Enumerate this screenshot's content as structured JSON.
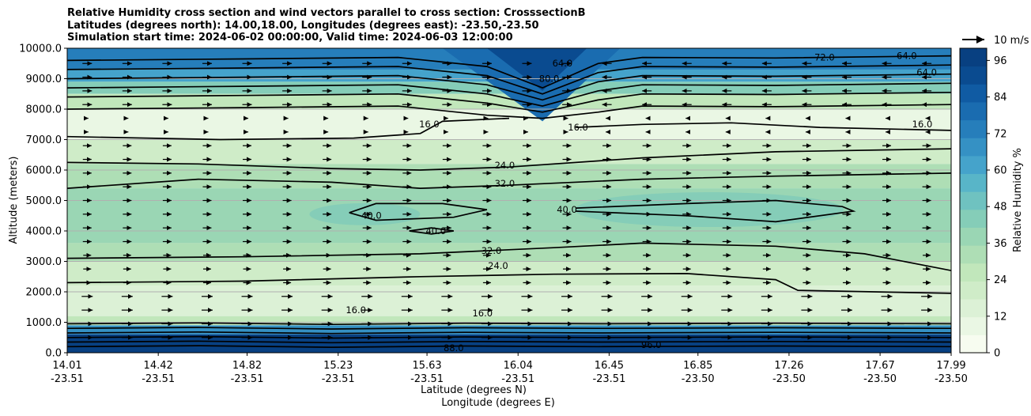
{
  "chart_data": {
    "type": "heatmap",
    "title_lines": [
      "Relative Humidity cross section and wind vectors parallel to cross section: CrosssectionB",
      "Latitudes (degrees north): 14.00,18.00, Longitudes (degrees east): -23.50,-23.50",
      "Simulation start time: 2024-06-02 00:00:00, Valid time: 2024-06-03 12:00:00"
    ],
    "ylabel": "Altitude (meters)",
    "xlabel_lat": "Latitude (degrees N)",
    "xlabel_lon": "Longitude (degrees E)",
    "colorbar_label": "Relative Humidity %",
    "ylim": [
      0,
      10000
    ],
    "y_ticks": [
      "0.0",
      "1000.0",
      "2000.0",
      "3000.0",
      "4000.0",
      "5000.0",
      "6000.0",
      "7000.0",
      "8000.0",
      "9000.0",
      "10000.0"
    ],
    "x_tick_lat": [
      "14.01",
      "14.42",
      "14.82",
      "15.23",
      "15.63",
      "16.04",
      "16.45",
      "16.85",
      "17.26",
      "17.67",
      "17.99"
    ],
    "x_tick_lon": [
      "-23.51",
      "-23.51",
      "-23.51",
      "-23.51",
      "-23.51",
      "-23.51",
      "-23.51",
      "-23.50",
      "-23.50",
      "-23.50",
      "-23.50"
    ],
    "colorbar_ticks": [
      "0",
      "12",
      "24",
      "36",
      "48",
      "60",
      "72",
      "84",
      "96"
    ],
    "colorbar_range": [
      0,
      100
    ],
    "colorbar_colors": [
      "#f7fcf0",
      "#eaf7e4",
      "#dcf1d6",
      "#cfecc8",
      "#c1e7bb",
      "#aedeb5",
      "#9ad6b4",
      "#85cdb8",
      "#6fc2c0",
      "#58b5c8",
      "#45a3cb",
      "#3591c4",
      "#267ebb",
      "#1a6cb0",
      "#105ba3",
      "#0a4b90",
      "#084081"
    ],
    "contour_levels": [
      16,
      24,
      32,
      40,
      56,
      64,
      72,
      80,
      88,
      96
    ],
    "contour_labels": [
      {
        "text": "16.0",
        "x_lat": 15.64,
        "alt": 7400
      },
      {
        "text": "24.0",
        "x_lat": 15.98,
        "alt": 6050
      },
      {
        "text": "32.0",
        "x_lat": 15.98,
        "alt": 5450
      },
      {
        "text": "40.0",
        "x_lat": 15.38,
        "alt": 4400
      },
      {
        "text": "40.0",
        "x_lat": 15.67,
        "alt": 3900
      },
      {
        "text": "40.0",
        "x_lat": 16.26,
        "alt": 4600
      },
      {
        "text": "32.0",
        "x_lat": 15.92,
        "alt": 3250
      },
      {
        "text": "24.0",
        "x_lat": 15.95,
        "alt": 2750
      },
      {
        "text": "16.0",
        "x_lat": 16.31,
        "alt": 7300
      },
      {
        "text": "16.0",
        "x_lat": 17.86,
        "alt": 7400
      },
      {
        "text": "64.0",
        "x_lat": 16.24,
        "alt": 9400
      },
      {
        "text": "80.0",
        "x_lat": 16.18,
        "alt": 8900
      },
      {
        "text": "72.0",
        "x_lat": 17.42,
        "alt": 9600
      },
      {
        "text": "64.0",
        "x_lat": 17.79,
        "alt": 9650
      },
      {
        "text": "64.0",
        "x_lat": 17.88,
        "alt": 9100
      },
      {
        "text": "16.0",
        "x_lat": 15.88,
        "alt": 1200
      },
      {
        "text": "16.0",
        "x_lat": 15.31,
        "alt": 1300
      },
      {
        "text": "88.0",
        "x_lat": 15.75,
        "alt": 50
      },
      {
        "text": "96.0",
        "x_lat": 16.64,
        "alt": 150
      }
    ],
    "wind_reference": "10 m/s",
    "grid": "horizontal only",
    "legend_placement": "right colorbar"
  }
}
